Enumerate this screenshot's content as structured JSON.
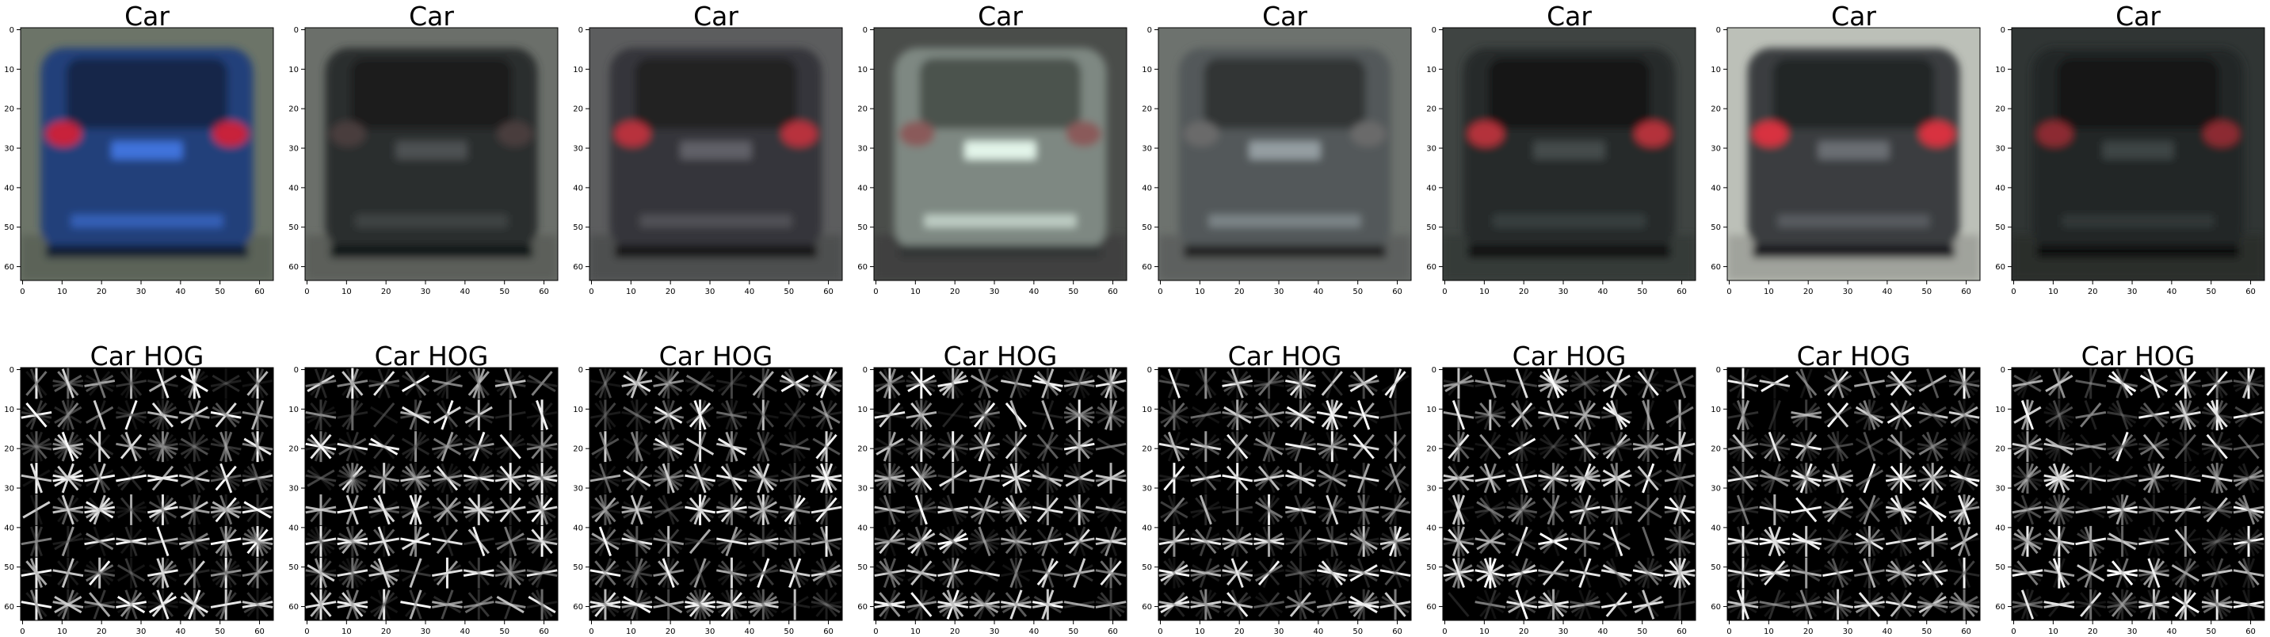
{
  "figure": {
    "rows": [
      {
        "kind": "photo",
        "panels": [
          {
            "title": "Car",
            "body_color": "#24407a",
            "bg_color": "#6c7468",
            "light_color": "#c8233a"
          },
          {
            "title": "Car",
            "body_color": "#2b2d2e",
            "bg_color": "#6b6f6a",
            "light_color": "#4a3c3c"
          },
          {
            "title": "Car",
            "body_color": "#36363a",
            "bg_color": "#5c5d5e",
            "light_color": "#b8323c"
          },
          {
            "title": "Car",
            "body_color": "#7e8882",
            "bg_color": "#4a4d4a",
            "light_color": "#8a5a5a"
          },
          {
            "title": "Car",
            "body_color": "#52585a",
            "bg_color": "#6d726e",
            "light_color": "#6a6a6a"
          },
          {
            "title": "Car",
            "body_color": "#262a2a",
            "bg_color": "#3f4442",
            "light_color": "#b4303a"
          },
          {
            "title": "Car",
            "body_color": "#3b3d40",
            "bg_color": "#bcc0b8",
            "light_color": "#d83040"
          },
          {
            "title": "Car",
            "body_color": "#222626",
            "bg_color": "#303534",
            "light_color": "#8c2a30"
          }
        ]
      },
      {
        "kind": "hog",
        "panels": [
          {
            "title": "Car HOG"
          },
          {
            "title": "Car HOG"
          },
          {
            "title": "Car HOG"
          },
          {
            "title": "Car HOG"
          },
          {
            "title": "Car HOG"
          },
          {
            "title": "Car HOG"
          },
          {
            "title": "Car HOG"
          },
          {
            "title": "Car HOG"
          }
        ]
      }
    ],
    "axes": {
      "x_ticks": [
        "0",
        "10",
        "20",
        "30",
        "40",
        "50",
        "60"
      ],
      "y_ticks": [
        "0",
        "10",
        "20",
        "30",
        "40",
        "50",
        "60"
      ],
      "extent": [
        0,
        64
      ]
    }
  }
}
